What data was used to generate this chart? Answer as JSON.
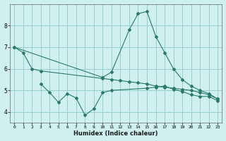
{
  "xlabel": "Humidex (Indice chaleur)",
  "line1_x": [
    0,
    1,
    2,
    3,
    10,
    11,
    12,
    13,
    14,
    15,
    16,
    17,
    18,
    19,
    20,
    21,
    22,
    23
  ],
  "line1_y": [
    7.0,
    6.75,
    6.0,
    5.9,
    5.55,
    5.5,
    5.45,
    5.4,
    5.35,
    5.3,
    5.2,
    5.15,
    5.1,
    5.05,
    5.0,
    4.9,
    4.8,
    4.6
  ],
  "line2_x": [
    0,
    10,
    11,
    13,
    14,
    15,
    16,
    17,
    18,
    19,
    20,
    21,
    22,
    23
  ],
  "line2_y": [
    7.0,
    5.6,
    5.85,
    7.8,
    8.55,
    8.65,
    7.5,
    6.75,
    6.0,
    5.5,
    5.2,
    5.0,
    4.85,
    4.6
  ],
  "line3_x": [
    3,
    4,
    5,
    6,
    7,
    8,
    9,
    10,
    11,
    15,
    16,
    17,
    18,
    19,
    20,
    21,
    22,
    23
  ],
  "line3_y": [
    5.3,
    4.9,
    4.45,
    4.85,
    4.65,
    3.85,
    4.15,
    4.9,
    5.0,
    5.1,
    5.15,
    5.2,
    5.05,
    4.95,
    4.8,
    4.72,
    4.72,
    4.52
  ],
  "color": "#2a7a6a",
  "bg_color": "#d0f0f0",
  "grid_color": "#98cece",
  "xlim": [
    -0.5,
    23.5
  ],
  "ylim": [
    3.5,
    9.0
  ],
  "yticks": [
    4,
    5,
    6,
    7,
    8
  ],
  "xticks": [
    0,
    1,
    2,
    3,
    4,
    5,
    6,
    7,
    8,
    9,
    10,
    11,
    12,
    13,
    14,
    15,
    16,
    17,
    18,
    19,
    20,
    21,
    22,
    23
  ]
}
